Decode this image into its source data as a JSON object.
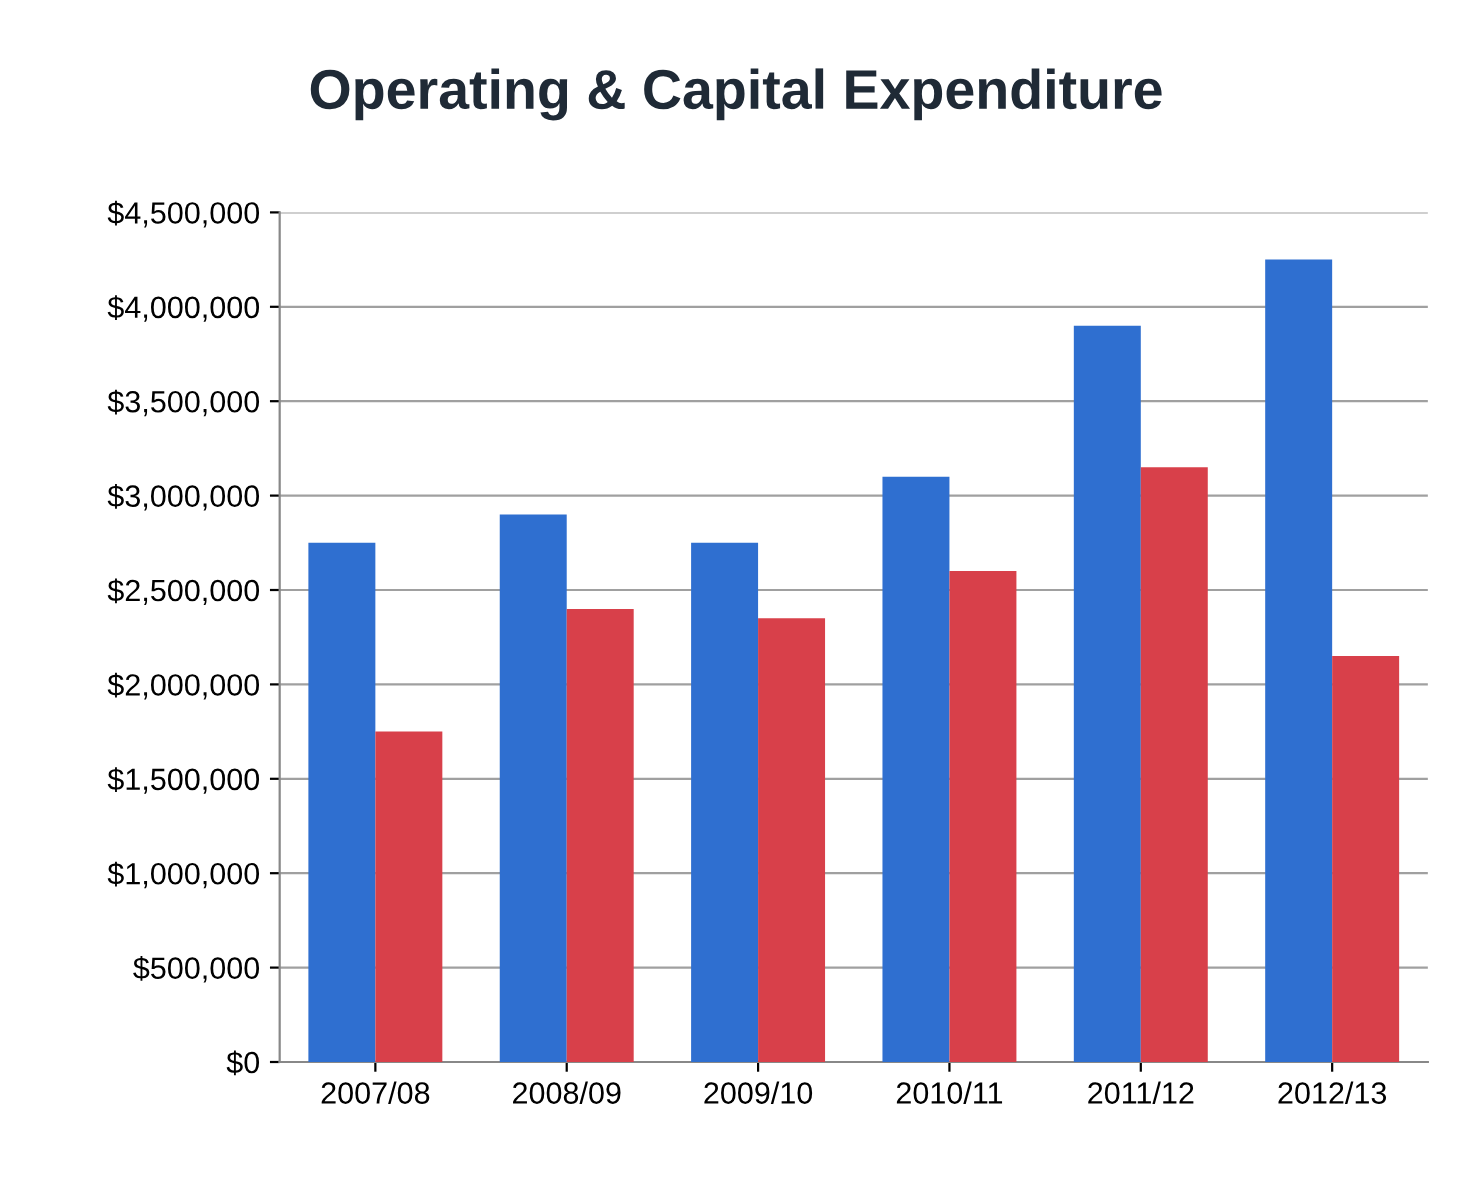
{
  "chart_data": {
    "type": "bar",
    "title": "Operating & Capital Expenditure",
    "categories": [
      "2007/08",
      "2008/09",
      "2009/10",
      "2010/11",
      "2011/12",
      "2012/13"
    ],
    "series": [
      {
        "color": "#2f6fd0",
        "values": [
          2750000,
          2900000,
          2750000,
          3100000,
          3900000,
          4250000
        ]
      },
      {
        "color": "#d8404a",
        "values": [
          1750000,
          2400000,
          2350000,
          2600000,
          3150000,
          2150000
        ]
      }
    ],
    "ylim": [
      0,
      4500000
    ],
    "yticks": [
      {
        "value": 0,
        "label": "$0"
      },
      {
        "value": 500000,
        "label": "$500,000"
      },
      {
        "value": 1000000,
        "label": "$1,000,000"
      },
      {
        "value": 1500000,
        "label": "$1,500,000"
      },
      {
        "value": 2000000,
        "label": "$2,000,000"
      },
      {
        "value": 2500000,
        "label": "$2,500,000"
      },
      {
        "value": 3000000,
        "label": "$3,000,000"
      },
      {
        "value": 3500000,
        "label": "$3,500,000"
      },
      {
        "value": 4000000,
        "label": "$4,000,000"
      },
      {
        "value": 4500000,
        "label": "$4,500,000"
      }
    ],
    "grid": "y"
  }
}
